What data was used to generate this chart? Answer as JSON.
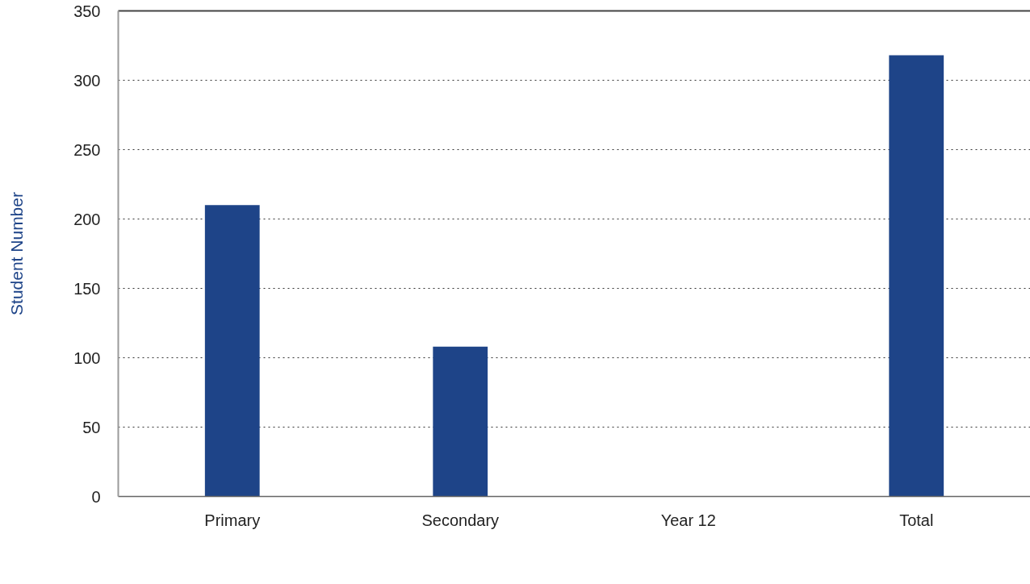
{
  "chart_data": {
    "type": "bar",
    "ylabel": "Student Number",
    "categories": [
      "Primary",
      "Secondary",
      "Year 12",
      "Total"
    ],
    "values": [
      210,
      108,
      0,
      318
    ],
    "color": "#1e4488",
    "ylim": [
      0,
      350
    ],
    "yticks": [
      0,
      50,
      100,
      150,
      200,
      250,
      300,
      350
    ],
    "grid": "y"
  }
}
